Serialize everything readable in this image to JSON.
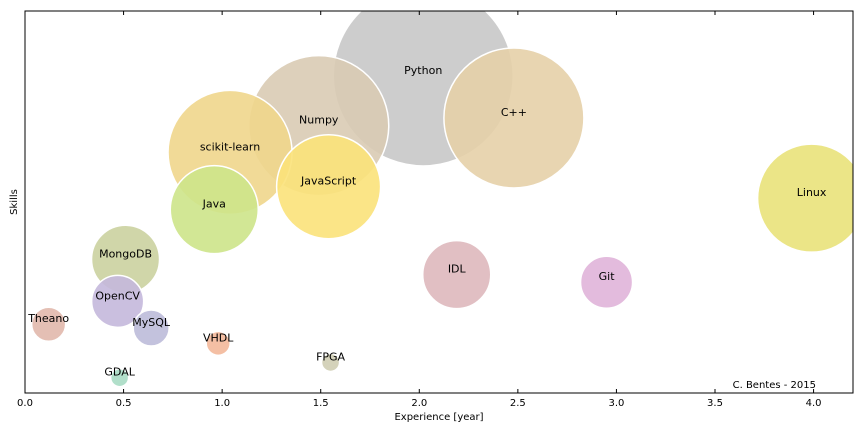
{
  "chart_data": {
    "type": "scatter",
    "title": "",
    "xlabel": "Experience [year]",
    "ylabel": "Skills",
    "xlim": [
      0,
      4.2
    ],
    "xticks": [
      0.0,
      0.5,
      1.0,
      1.5,
      2.0,
      2.5,
      3.0,
      3.5,
      4.0
    ],
    "xtick_labels": [
      "0.0",
      "0.5",
      "1.0",
      "1.5",
      "2.0",
      "2.5",
      "3.0",
      "3.5",
      "4.0"
    ],
    "ylim": [
      0,
      100
    ],
    "grid": false,
    "legend": "none",
    "annotation": "C. Bentes - 2015",
    "series": [
      {
        "label": "Python",
        "x": 2.02,
        "y": 83,
        "size": 90,
        "color": "#c8c8c8"
      },
      {
        "label": "C++",
        "x": 2.48,
        "y": 72,
        "size": 70,
        "color": "#e6d0a8"
      },
      {
        "label": "Numpy",
        "x": 1.49,
        "y": 70,
        "size": 70,
        "color": "#d9cbb4"
      },
      {
        "label": "scikit-learn",
        "x": 1.04,
        "y": 63,
        "size": 62,
        "color": "#f0d68c"
      },
      {
        "label": "JavaScript",
        "x": 1.54,
        "y": 54,
        "size": 52,
        "color": "#fbe27a"
      },
      {
        "label": "Java",
        "x": 0.96,
        "y": 48,
        "size": 44,
        "color": "#cde48a"
      },
      {
        "label": "Linux",
        "x": 3.99,
        "y": 51,
        "size": 54,
        "color": "#e9e27a"
      },
      {
        "label": "MongoDB",
        "x": 0.51,
        "y": 35,
        "size": 34,
        "color": "#cbd2a0"
      },
      {
        "label": "IDL",
        "x": 2.19,
        "y": 31,
        "size": 34,
        "color": "#deb8bd"
      },
      {
        "label": "Git",
        "x": 2.95,
        "y": 29,
        "size": 26,
        "color": "#e0b4d9"
      },
      {
        "label": "OpenCV",
        "x": 0.47,
        "y": 24,
        "size": 26,
        "color": "#c4b8dc"
      },
      {
        "label": "MySQL",
        "x": 0.64,
        "y": 17,
        "size": 18,
        "color": "#bdbbd9"
      },
      {
        "label": "Theano",
        "x": 0.12,
        "y": 18,
        "size": 17,
        "color": "#e1b8ac"
      },
      {
        "label": "VHDL",
        "x": 0.98,
        "y": 13,
        "size": 12,
        "color": "#f3b89a"
      },
      {
        "label": "FPGA",
        "x": 1.55,
        "y": 8,
        "size": 9,
        "color": "#cfcdb2"
      },
      {
        "label": "GDAL",
        "x": 0.48,
        "y": 4,
        "size": 9,
        "color": "#a8dcc4"
      }
    ]
  }
}
